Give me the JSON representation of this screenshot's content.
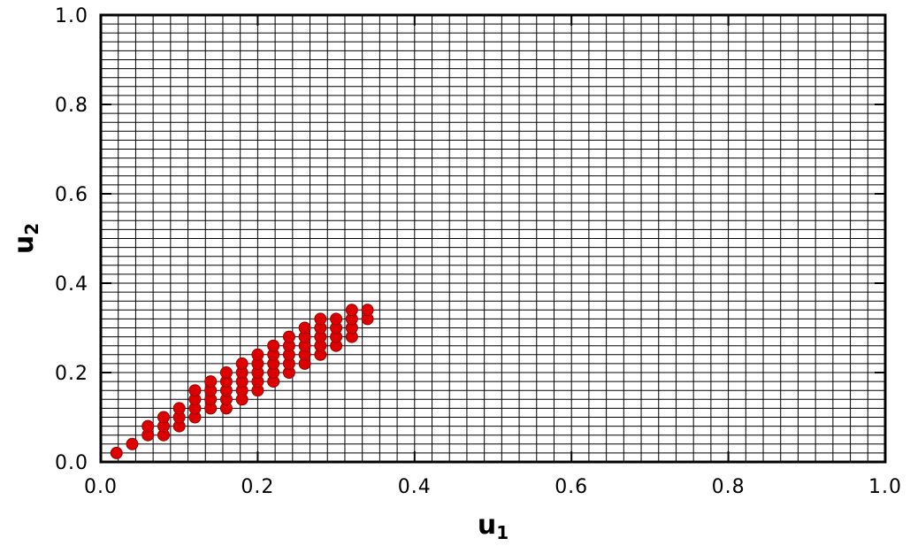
{
  "chart_data": {
    "type": "scatter",
    "title": "",
    "xlabel": {
      "base": "u",
      "sub": "1"
    },
    "ylabel": {
      "base": "u",
      "sub": "2"
    },
    "xlim": [
      0.0,
      1.0
    ],
    "ylim": [
      0.0,
      1.0
    ],
    "x_ticks": [
      0.0,
      0.2,
      0.4,
      0.6,
      0.8,
      1.0
    ],
    "x_tick_labels": [
      "0.0",
      "0.2",
      "0.4",
      "0.6",
      "0.8",
      "1.0"
    ],
    "y_ticks": [
      0.0,
      0.2,
      0.4,
      0.6,
      0.8,
      1.0
    ],
    "y_tick_labels": [
      "0.0",
      "0.2",
      "0.4",
      "0.6",
      "0.8",
      "1.0"
    ],
    "grid": true,
    "grid_divisions": {
      "x": 45,
      "y": 50
    },
    "marker": {
      "shape": "circle",
      "color": "#dd0000"
    },
    "colors": {
      "grid": "#000000",
      "frame": "#000000",
      "marker": "#dd0000"
    },
    "series": [
      {
        "points": [
          [
            0.02,
            0.02
          ],
          [
            0.04,
            0.04
          ],
          [
            0.06,
            0.06
          ],
          [
            0.06,
            0.08
          ],
          [
            0.08,
            0.06
          ],
          [
            0.08,
            0.08
          ],
          [
            0.08,
            0.1
          ],
          [
            0.1,
            0.08
          ],
          [
            0.1,
            0.1
          ],
          [
            0.1,
            0.12
          ],
          [
            0.12,
            0.1
          ],
          [
            0.12,
            0.12
          ],
          [
            0.12,
            0.14
          ],
          [
            0.12,
            0.16
          ],
          [
            0.14,
            0.12
          ],
          [
            0.14,
            0.14
          ],
          [
            0.14,
            0.16
          ],
          [
            0.14,
            0.18
          ],
          [
            0.16,
            0.12
          ],
          [
            0.16,
            0.14
          ],
          [
            0.16,
            0.16
          ],
          [
            0.16,
            0.18
          ],
          [
            0.16,
            0.2
          ],
          [
            0.18,
            0.14
          ],
          [
            0.18,
            0.16
          ],
          [
            0.18,
            0.18
          ],
          [
            0.18,
            0.2
          ],
          [
            0.18,
            0.22
          ],
          [
            0.2,
            0.16
          ],
          [
            0.2,
            0.18
          ],
          [
            0.2,
            0.2
          ],
          [
            0.2,
            0.22
          ],
          [
            0.2,
            0.24
          ],
          [
            0.22,
            0.18
          ],
          [
            0.22,
            0.2
          ],
          [
            0.22,
            0.22
          ],
          [
            0.22,
            0.24
          ],
          [
            0.22,
            0.26
          ],
          [
            0.24,
            0.2
          ],
          [
            0.24,
            0.22
          ],
          [
            0.24,
            0.24
          ],
          [
            0.24,
            0.26
          ],
          [
            0.24,
            0.28
          ],
          [
            0.26,
            0.22
          ],
          [
            0.26,
            0.24
          ],
          [
            0.26,
            0.26
          ],
          [
            0.26,
            0.28
          ],
          [
            0.26,
            0.3
          ],
          [
            0.28,
            0.24
          ],
          [
            0.28,
            0.26
          ],
          [
            0.28,
            0.28
          ],
          [
            0.28,
            0.3
          ],
          [
            0.28,
            0.32
          ],
          [
            0.3,
            0.26
          ],
          [
            0.3,
            0.28
          ],
          [
            0.3,
            0.3
          ],
          [
            0.3,
            0.32
          ],
          [
            0.32,
            0.28
          ],
          [
            0.32,
            0.3
          ],
          [
            0.32,
            0.32
          ],
          [
            0.32,
            0.34
          ],
          [
            0.34,
            0.32
          ],
          [
            0.34,
            0.34
          ]
        ]
      }
    ]
  }
}
